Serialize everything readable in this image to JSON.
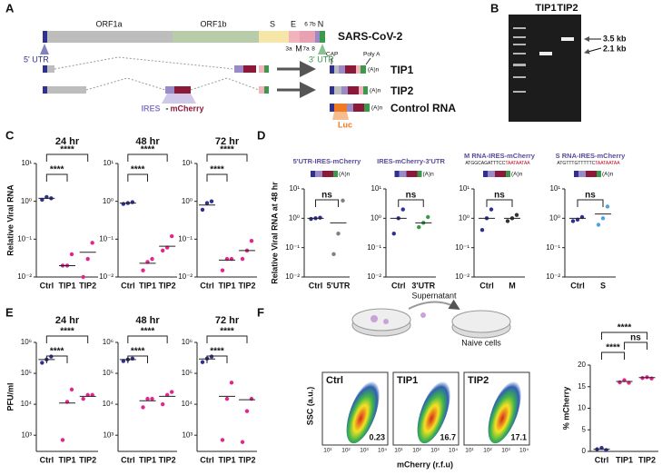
{
  "panel_labels": [
    "A",
    "B",
    "C",
    "D",
    "E",
    "F"
  ],
  "panel_a": {
    "genome_title": "SARS-CoV-2",
    "orfs": [
      "ORF1a",
      "ORF1b",
      "S",
      "E",
      "3a",
      "M",
      "7a",
      "6",
      "7b",
      "8",
      "N"
    ],
    "utr5": "5' UTR",
    "utr3": "3' UTR",
    "tips": [
      "TIP1",
      "TIP2"
    ],
    "cap": "CAP",
    "polya": "Poly A",
    "polya_tail": "(A)n",
    "ires_mcherry": [
      "IRES",
      "-",
      "mCherry"
    ],
    "control": "Control RNA",
    "luc": "Luc"
  },
  "panel_b": {
    "lanes": [
      "TIP1",
      "TIP2"
    ],
    "markers": [
      "3.5 kb",
      "2.1 kb"
    ]
  },
  "panel_f": {
    "supernatant": "Supernatant",
    "naive": "Naive cells",
    "flow_xlabel": "mCherry (r.f.u)",
    "flow_ylabel": "SSC (a.u.)",
    "flow_ticks": [
      "10¹",
      "10²",
      "10³",
      "10⁴"
    ],
    "flow_plots": [
      {
        "name": "Ctrl",
        "percent": 0.23
      },
      {
        "name": "TIP1",
        "percent": 16.7
      },
      {
        "name": "TIP2",
        "percent": 17.1
      }
    ]
  },
  "chart_data": [
    {
      "type": "dot",
      "title": "24 hr",
      "ylabel": "Relative Viral RNA",
      "categories": [
        "Ctrl",
        "TIP1",
        "TIP2"
      ],
      "colors": [
        "#2e3192",
        "#e6248e",
        "#e6248e"
      ],
      "values": [
        [
          1.1,
          1.3,
          1.2
        ],
        [
          0.02,
          0.02,
          0.04
        ],
        [
          0.01,
          0.03,
          0.08
        ]
      ],
      "means": [
        1.2,
        0.02,
        0.045
      ],
      "log": true,
      "ylim": [
        0.01,
        10
      ],
      "yticks": [
        {
          "value": 0.01,
          "label": "10⁻²"
        },
        {
          "value": 0.1,
          "label": "10⁻¹"
        },
        {
          "value": 1,
          "label": "10⁰"
        },
        {
          "value": 10,
          "label": "10¹"
        }
      ],
      "significance": [
        {
          "from": "Ctrl",
          "to": "TIP1",
          "label": "****"
        },
        {
          "from": "Ctrl",
          "to": "TIP2",
          "label": "****"
        }
      ]
    },
    {
      "type": "dot",
      "title": "48 hr",
      "categories": [
        "Ctrl",
        "TIP1",
        "TIP2"
      ],
      "colors": [
        "#2e3192",
        "#e6248e",
        "#e6248e"
      ],
      "values": [
        [
          0.85,
          0.9,
          0.95
        ],
        [
          0.015,
          0.025,
          0.03
        ],
        [
          0.05,
          0.06,
          0.12
        ]
      ],
      "means": [
        0.9,
        0.023,
        0.065
      ],
      "log": true,
      "ylim": [
        0.01,
        10
      ],
      "yticks": [
        {
          "value": 0.01,
          "label": "10⁻²"
        },
        {
          "value": 0.1,
          "label": "10⁻¹"
        },
        {
          "value": 1,
          "label": "10⁰"
        },
        {
          "value": 10,
          "label": "10¹"
        }
      ],
      "significance": [
        {
          "from": "Ctrl",
          "to": "TIP1",
          "label": "****"
        },
        {
          "from": "Ctrl",
          "to": "TIP2",
          "label": "****"
        }
      ]
    },
    {
      "type": "dot",
      "title": "72 hr",
      "categories": [
        "Ctrl",
        "TIP1",
        "TIP2"
      ],
      "colors": [
        "#2e3192",
        "#e6248e",
        "#e6248e"
      ],
      "values": [
        [
          0.6,
          0.9,
          1.0
        ],
        [
          0.015,
          0.03,
          0.03
        ],
        [
          0.03,
          0.05,
          0.09
        ]
      ],
      "means": [
        0.8,
        0.028,
        0.05
      ],
      "log": true,
      "ylim": [
        0.01,
        10
      ],
      "yticks": [
        {
          "value": 0.01,
          "label": "10⁻²"
        },
        {
          "value": 0.1,
          "label": "10⁻¹"
        },
        {
          "value": 1,
          "label": "10⁰"
        },
        {
          "value": 10,
          "label": "10¹"
        }
      ],
      "significance": [
        {
          "from": "Ctrl",
          "to": "TIP1",
          "label": "****"
        },
        {
          "from": "Ctrl",
          "to": "TIP2",
          "label": "****"
        }
      ]
    },
    {
      "type": "dot",
      "title": "5'UTR-IRES-mCherry",
      "ylabel": "Relative Viral RNA at 48 hr",
      "categories": [
        "Ctrl",
        "5'UTR"
      ],
      "colors": [
        "#2e3192",
        "#808080"
      ],
      "values": [
        [
          0.95,
          1.0,
          1.05
        ],
        [
          0.06,
          0.3,
          4
        ]
      ],
      "means": [
        1,
        0.7
      ],
      "log": true,
      "ylim": [
        0.01,
        10
      ],
      "yticks": [
        {
          "value": 0.01,
          "label": "10⁻²"
        },
        {
          "value": 0.1,
          "label": "10⁻¹"
        },
        {
          "value": 1,
          "label": "10⁰"
        },
        {
          "value": 10,
          "label": "10¹"
        }
      ],
      "significance": [
        {
          "from": "Ctrl",
          "to": "5'UTR",
          "label": "ns"
        }
      ]
    },
    {
      "type": "dot",
      "title": "IRES-mCherry-3'UTR",
      "categories": [
        "Ctrl",
        "3'UTR"
      ],
      "colors": [
        "#2e3192",
        "#3a9a4a"
      ],
      "values": [
        [
          0.3,
          1.0,
          2.0
        ],
        [
          0.5,
          0.7,
          1.1
        ]
      ],
      "means": [
        1,
        0.7
      ],
      "log": true,
      "ylim": [
        0.01,
        10
      ],
      "yticks": [
        {
          "value": 0.01,
          "label": "10⁻²"
        },
        {
          "value": 0.1,
          "label": "10⁻¹"
        },
        {
          "value": 1,
          "label": "10⁰"
        },
        {
          "value": 10,
          "label": "10¹"
        }
      ],
      "significance": [
        {
          "from": "Ctrl",
          "to": "3'UTR",
          "label": "ns"
        }
      ]
    },
    {
      "type": "dot",
      "title": "M RNA-IRES-mCherry",
      "sequence": [
        "ATGGCAGATTTCC",
        "TAATAATAA"
      ],
      "categories": [
        "Ctrl",
        "M"
      ],
      "colors": [
        "#2e3192",
        "#333333"
      ],
      "values": [
        [
          0.4,
          1.0,
          2.0
        ],
        [
          0.8,
          1.0,
          1.3
        ]
      ],
      "means": [
        1,
        1
      ],
      "log": true,
      "ylim": [
        0.01,
        10
      ],
      "yticks": [
        {
          "value": 0.01,
          "label": "10⁻²"
        },
        {
          "value": 0.1,
          "label": "10⁻¹"
        },
        {
          "value": 1,
          "label": "10⁰"
        },
        {
          "value": 10,
          "label": "10¹"
        }
      ],
      "significance": [
        {
          "from": "Ctrl",
          "to": "M",
          "label": "ns"
        }
      ]
    },
    {
      "type": "dot",
      "title": "S RNA-IRES-mCherry",
      "sequence": [
        "ATGTTTGTTTTTC",
        "TAATAATAA"
      ],
      "categories": [
        "Ctrl",
        "S"
      ],
      "colors": [
        "#2e3192",
        "#4fa3e0"
      ],
      "values": [
        [
          0.8,
          0.9,
          1.1
        ],
        [
          0.6,
          1.0,
          2.5
        ]
      ],
      "means": [
        1,
        1.4
      ],
      "log": true,
      "ylim": [
        0.01,
        10
      ],
      "yticks": [
        {
          "value": 0.01,
          "label": "10⁻²"
        },
        {
          "value": 0.1,
          "label": "10⁻¹"
        },
        {
          "value": 1,
          "label": "10⁰"
        },
        {
          "value": 10,
          "label": "10¹"
        }
      ],
      "significance": [
        {
          "from": "Ctrl",
          "to": "S",
          "label": "ns"
        }
      ]
    },
    {
      "type": "dot",
      "title": "24 hr",
      "ylabel": "PFU/ml",
      "categories": [
        "Ctrl",
        "TIP1",
        "TIP2"
      ],
      "colors": [
        "#2e3192",
        "#e6248e",
        "#e6248e"
      ],
      "values": [
        [
          220000,
          280000,
          350000
        ],
        [
          700,
          12000,
          30000
        ],
        [
          15000,
          20000,
          20000
        ]
      ],
      "means": [
        280000,
        11000,
        18000
      ],
      "log": true,
      "ylim": [
        300,
        1000000
      ],
      "yticks": [
        {
          "value": 1000,
          "label": "10³"
        },
        {
          "value": 10000,
          "label": "10⁴"
        },
        {
          "value": 100000,
          "label": "10⁵"
        },
        {
          "value": 1000000,
          "label": "10⁶"
        }
      ],
      "significance": [
        {
          "from": "Ctrl",
          "to": "TIP1",
          "label": "****"
        },
        {
          "from": "Ctrl",
          "to": "TIP2",
          "label": "****"
        }
      ]
    },
    {
      "type": "dot",
      "title": "48 hr",
      "categories": [
        "Ctrl",
        "TIP1",
        "TIP2"
      ],
      "colors": [
        "#2e3192",
        "#e6248e",
        "#e6248e"
      ],
      "values": [
        [
          250000,
          280000,
          300000
        ],
        [
          8000,
          15000,
          15000
        ],
        [
          10000,
          20000,
          25000
        ]
      ],
      "means": [
        280000,
        13000,
        18000
      ],
      "log": true,
      "ylim": [
        300,
        1000000
      ],
      "yticks": [
        {
          "value": 1000,
          "label": "10³"
        },
        {
          "value": 10000,
          "label": "10⁴"
        },
        {
          "value": 100000,
          "label": "10⁵"
        },
        {
          "value": 1000000,
          "label": "10⁶"
        }
      ],
      "significance": [
        {
          "from": "Ctrl",
          "to": "TIP1",
          "label": "****"
        },
        {
          "from": "Ctrl",
          "to": "TIP2",
          "label": "****"
        }
      ]
    },
    {
      "type": "dot",
      "title": "72 hr",
      "categories": [
        "Ctrl",
        "TIP1",
        "TIP2"
      ],
      "colors": [
        "#2e3192",
        "#e6248e",
        "#e6248e"
      ],
      "values": [
        [
          230000,
          300000,
          350000
        ],
        [
          700,
          15000,
          50000
        ],
        [
          600,
          6000,
          15000
        ]
      ],
      "means": [
        290000,
        18000,
        14000
      ],
      "log": true,
      "ylim": [
        300,
        1000000
      ],
      "yticks": [
        {
          "value": 1000,
          "label": "10³"
        },
        {
          "value": 10000,
          "label": "10⁴"
        },
        {
          "value": 100000,
          "label": "10⁵"
        },
        {
          "value": 1000000,
          "label": "10⁶"
        }
      ],
      "significance": [
        {
          "from": "Ctrl",
          "to": "TIP1",
          "label": "****"
        },
        {
          "from": "Ctrl",
          "to": "TIP2",
          "label": "****"
        }
      ]
    },
    {
      "type": "dot",
      "ylabel": "% mCherry",
      "categories": [
        "Ctrl",
        "TIP1",
        "TIP2"
      ],
      "colors": [
        "#2e3192",
        "#e6248e",
        "#e6248e"
      ],
      "values": [
        [
          0.5,
          0.8,
          0.3
        ],
        [
          16,
          16.5,
          15.9
        ],
        [
          17,
          17.2,
          16.9
        ]
      ],
      "means": [
        0.5,
        16.2,
        17.1
      ],
      "log": false,
      "ylim": [
        0,
        20
      ],
      "yticks": [
        0,
        5,
        10,
        15,
        20
      ],
      "significance": [
        {
          "from": "Ctrl",
          "to": "TIP1",
          "label": "****"
        },
        {
          "from": "TIP1",
          "to": "TIP2",
          "label": "ns"
        },
        {
          "from": "Ctrl",
          "to": "TIP2",
          "label": "****"
        }
      ]
    }
  ]
}
